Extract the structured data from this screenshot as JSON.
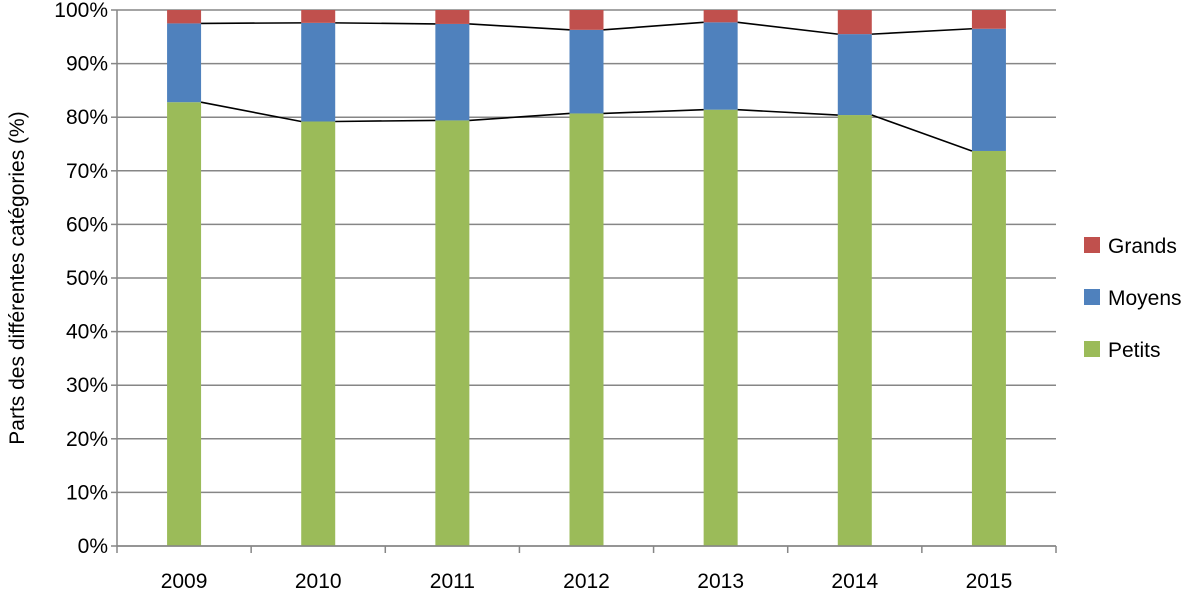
{
  "chart_data": {
    "type": "bar",
    "stacked": true,
    "percent_stacked": true,
    "categories": [
      "2009",
      "2010",
      "2011",
      "2012",
      "2013",
      "2014",
      "2015"
    ],
    "series": [
      {
        "name": "Petits",
        "color": "#9BBB59",
        "values": [
          82.8,
          79.2,
          79.4,
          80.7,
          81.4,
          80.4,
          73.7
        ]
      },
      {
        "name": "Moyens",
        "color": "#4F81BD",
        "values": [
          14.7,
          18.4,
          18.0,
          15.6,
          16.3,
          15.1,
          22.8
        ]
      },
      {
        "name": "Grands",
        "color": "#C0504D",
        "values": [
          2.5,
          2.4,
          2.6,
          3.7,
          2.3,
          4.5,
          3.5
        ]
      }
    ],
    "series_lines": true,
    "ylabel": "Parts des différentes catégories (%)",
    "ylim": [
      0,
      100
    ],
    "yticks": [
      "0%",
      "10%",
      "20%",
      "30%",
      "40%",
      "50%",
      "60%",
      "70%",
      "80%",
      "90%",
      "100%"
    ],
    "grid": true,
    "legend_position": "right"
  }
}
